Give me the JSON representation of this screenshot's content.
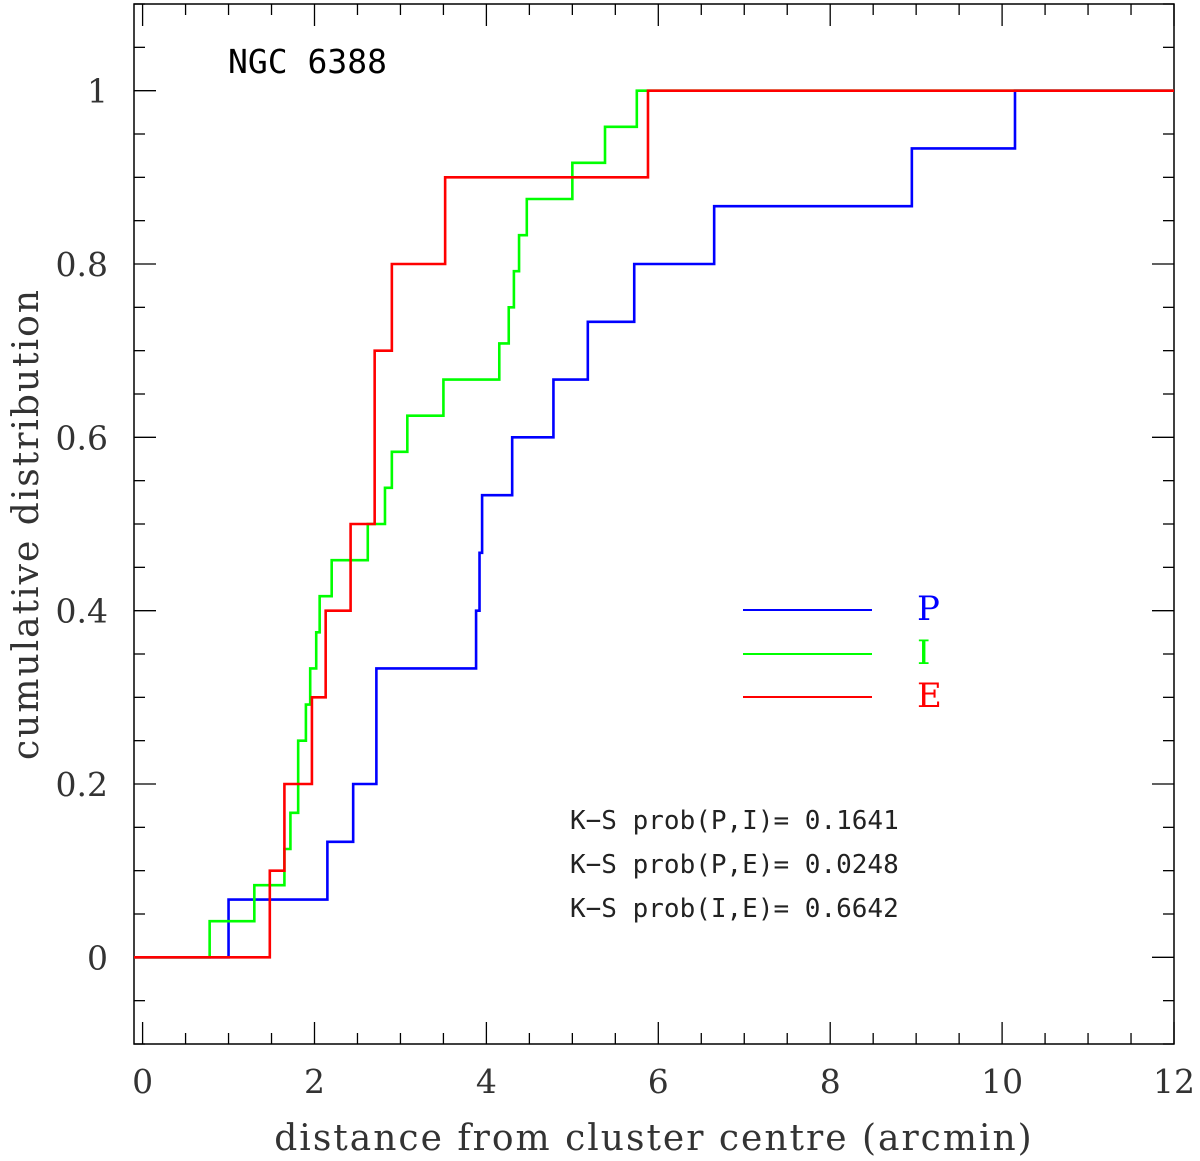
{
  "chart_data": {
    "type": "line",
    "title": "NGC 6388",
    "xlabel": "distance from cluster centre (arcmin)",
    "ylabel": "cumulative distribution",
    "xlim": [
      -0.1,
      12
    ],
    "ylim": [
      -0.1,
      1.1
    ],
    "x_ticks": [
      0,
      2,
      4,
      6,
      8,
      10,
      12
    ],
    "y_ticks": [
      0,
      0.2,
      0.4,
      0.6,
      0.8,
      1
    ],
    "x_tick_labels": [
      "0",
      "2",
      "4",
      "6",
      "8",
      "10",
      "12"
    ],
    "y_tick_labels": [
      "0",
      "0.2",
      "0.4",
      "0.6",
      "0.8",
      "1"
    ],
    "legend_position": "right-middle",
    "series": [
      {
        "name": "P",
        "color": "#0000ff",
        "x": [
          -0.1,
          1.0,
          2.15,
          2.45,
          2.72,
          3.88,
          3.92,
          3.95,
          3.99,
          4.3,
          4.78,
          5.18,
          5.72,
          6.65,
          8.95,
          10.15,
          12.0
        ],
        "y": [
          0,
          0.0667,
          0.1333,
          0.2,
          0.3333,
          0.4,
          0.4667,
          0.5333,
          0.5333,
          0.6,
          0.6667,
          0.7333,
          0.8,
          0.8667,
          0.9333,
          1.0,
          1.0
        ]
      },
      {
        "name": "I",
        "color": "#00ff00",
        "x": [
          -0.1,
          0.78,
          1.3,
          1.53,
          1.65,
          1.72,
          1.81,
          1.9,
          1.95,
          2.02,
          2.06,
          2.2,
          2.62,
          2.82,
          2.9,
          2.98,
          3.08,
          3.5,
          4.15,
          4.26,
          4.32,
          4.34,
          4.38,
          4.47,
          5.0,
          5.38,
          5.55,
          5.75,
          12.0
        ],
        "y": [
          0,
          0.0417,
          0.0833,
          0.0833,
          0.125,
          0.1667,
          0.25,
          0.2917,
          0.3333,
          0.375,
          0.4167,
          0.4583,
          0.5,
          0.5417,
          0.5833,
          0.5833,
          0.625,
          0.6667,
          0.7083,
          0.75,
          0.7917,
          0.7917,
          0.8333,
          0.875,
          0.9167,
          0.9583,
          0.9583,
          1.0,
          1.0
        ]
      },
      {
        "name": "E",
        "color": "#ff0000",
        "x": [
          -0.1,
          1.48,
          1.65,
          1.97,
          2.13,
          2.42,
          2.7,
          2.9,
          3.52,
          5.88,
          12.0
        ],
        "y": [
          0,
          0.1,
          0.2,
          0.3,
          0.4,
          0.5,
          0.7,
          0.8,
          0.9,
          1.0,
          1.0
        ]
      }
    ],
    "annotations": [
      "K−S prob(P,I)= 0.1641",
      "K−S prob(P,E)= 0.0248",
      "K−S prob(I,E)= 0.6642"
    ]
  }
}
